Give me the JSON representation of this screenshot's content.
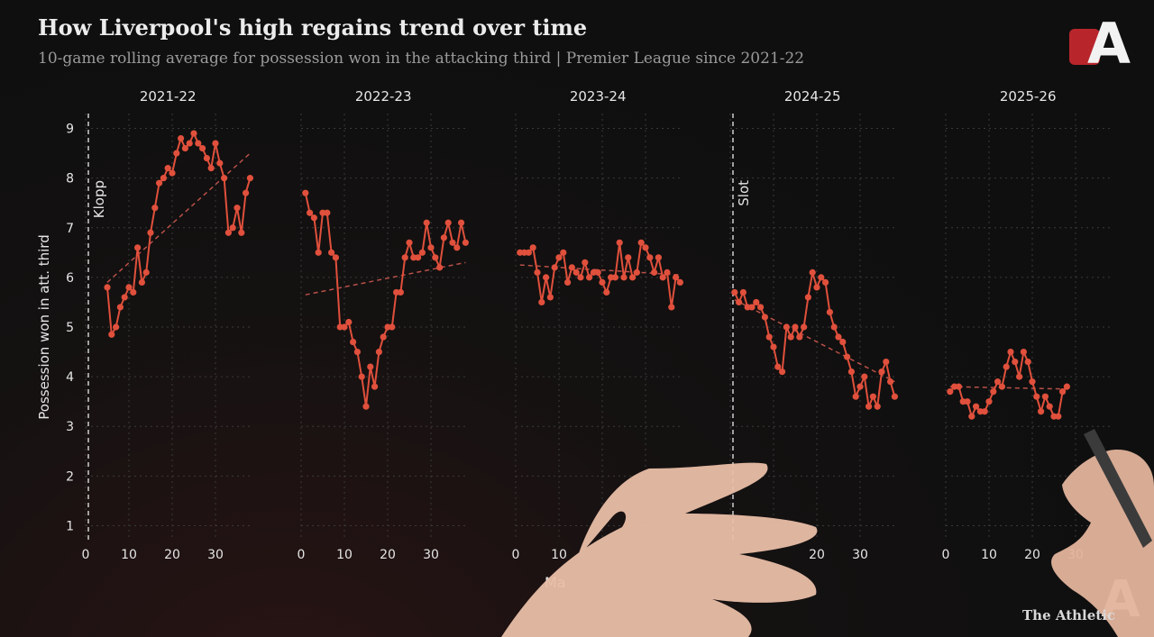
{
  "header": {
    "title": "How Liverpool's high regains trend over time",
    "subtitle": "10-game rolling average for possession won in the attacking third | Premier League since 2021-22"
  },
  "branding": {
    "footer": "The Athletic",
    "logo_letter": "A"
  },
  "colors": {
    "line": "#e0503c",
    "trend": "#b85048",
    "grid": "#3a3a3a",
    "text": "#e6e6e6"
  },
  "chart_data": {
    "type": "line",
    "title": "How Liverpool's high regains trend over time",
    "subtitle": "10-game rolling average for possession won in the attacking third | Premier League since 2021-22",
    "ylabel": "Possession won in att. third",
    "xlabel": "Ma",
    "ylim": [
      0.7,
      9.3
    ],
    "yticks": [
      1,
      2,
      3,
      4,
      5,
      6,
      7,
      8,
      9
    ],
    "grid": true,
    "panels": [
      {
        "name": "2021-22",
        "xlim": [
          0,
          38
        ],
        "xticks": [
          0,
          10,
          20,
          30
        ],
        "annotation": "Klopp",
        "x": [
          5,
          6,
          7,
          8,
          9,
          10,
          11,
          12,
          13,
          14,
          15,
          16,
          17,
          18,
          19,
          20,
          21,
          22,
          23,
          24,
          25,
          26,
          27,
          28,
          29,
          30,
          31,
          32,
          33,
          34,
          35,
          36,
          37,
          38
        ],
        "y": [
          5.8,
          4.85,
          5.0,
          5.4,
          5.6,
          5.8,
          5.7,
          6.6,
          5.9,
          6.1,
          6.9,
          7.4,
          7.9,
          8.0,
          8.2,
          8.1,
          8.5,
          8.8,
          8.6,
          8.7,
          8.9,
          8.7,
          8.6,
          8.4,
          8.2,
          8.7,
          8.3,
          8.0,
          6.9,
          7.0,
          7.4,
          6.9,
          7.7,
          8.0
        ],
        "trend": [
          [
            5,
            5.9
          ],
          [
            38,
            8.5
          ]
        ]
      },
      {
        "name": "2022-23",
        "xlim": [
          0,
          38
        ],
        "xticks": [
          0,
          10,
          20,
          30
        ],
        "x": [
          1,
          2,
          3,
          4,
          5,
          6,
          7,
          8,
          9,
          10,
          11,
          12,
          13,
          14,
          15,
          16,
          17,
          18,
          19,
          20,
          21,
          22,
          23,
          24,
          25,
          26,
          27,
          28,
          29,
          30,
          31,
          32,
          33,
          34,
          35,
          36,
          37,
          38
        ],
        "y": [
          7.7,
          7.3,
          7.2,
          6.5,
          7.3,
          7.3,
          6.5,
          6.4,
          5.0,
          5.0,
          5.1,
          4.7,
          4.5,
          4.0,
          3.4,
          4.2,
          3.8,
          4.5,
          4.8,
          5.0,
          5.0,
          5.7,
          5.7,
          6.4,
          6.7,
          6.4,
          6.4,
          6.5,
          7.1,
          6.6,
          6.4,
          6.2,
          6.8,
          7.1,
          6.7,
          6.6,
          7.1,
          6.7
        ],
        "trend": [
          [
            1,
            5.65
          ],
          [
            38,
            6.3
          ]
        ]
      },
      {
        "name": "2023-24",
        "xlim": [
          0,
          38
        ],
        "xticks": [
          0,
          10
        ],
        "x": [
          1,
          2,
          3,
          4,
          5,
          6,
          7,
          8,
          9,
          10,
          11,
          12,
          13,
          14,
          15,
          16,
          17,
          18,
          19,
          20,
          21,
          22,
          23,
          24,
          25,
          26,
          27,
          28,
          29,
          30,
          31,
          32,
          33,
          34,
          35,
          36,
          37,
          38
        ],
        "y": [
          6.5,
          6.5,
          6.5,
          6.6,
          6.1,
          5.5,
          6.0,
          5.6,
          6.2,
          6.4,
          6.5,
          5.9,
          6.2,
          6.1,
          6.0,
          6.3,
          6.0,
          6.1,
          6.1,
          5.9,
          5.7,
          6.0,
          6.0,
          6.7,
          6.0,
          6.4,
          6.0,
          6.1,
          6.7,
          6.6,
          6.4,
          6.1,
          6.4,
          6.0,
          6.1,
          5.4,
          6.0,
          5.9
        ],
        "trend": [
          [
            1,
            6.25
          ],
          [
            38,
            6.05
          ]
        ]
      },
      {
        "name": "2024-25",
        "xlim": [
          0,
          38
        ],
        "xticks": [
          20,
          30
        ],
        "annotation": "Slot",
        "x": [
          1,
          2,
          3,
          4,
          5,
          6,
          7,
          8,
          9,
          10,
          11,
          12,
          13,
          14,
          15,
          16,
          17,
          18,
          19,
          20,
          21,
          22,
          23,
          24,
          25,
          26,
          27,
          28,
          29,
          30,
          31,
          32,
          33,
          34,
          35,
          36,
          37,
          38
        ],
        "y": [
          5.7,
          5.5,
          5.7,
          5.4,
          5.4,
          5.5,
          5.4,
          5.2,
          4.8,
          4.6,
          4.2,
          4.1,
          5.0,
          4.8,
          5.0,
          4.8,
          5.0,
          5.6,
          6.1,
          5.8,
          6.0,
          5.9,
          5.3,
          5.0,
          4.8,
          4.7,
          4.4,
          4.1,
          3.6,
          3.8,
          4.0,
          3.4,
          3.6,
          3.4,
          4.1,
          4.3,
          3.9,
          3.6
        ],
        "trend": [
          [
            1,
            5.55
          ],
          [
            38,
            3.9
          ]
        ]
      },
      {
        "name": "2025-26",
        "xlim": [
          0,
          38
        ],
        "xticks": [
          0,
          10,
          20,
          30
        ],
        "x": [
          1,
          2,
          3,
          4,
          5,
          6,
          7,
          8,
          9,
          10,
          11,
          12,
          13,
          14,
          15,
          16,
          17,
          18,
          19,
          20,
          21,
          22,
          23,
          24,
          25,
          26,
          27,
          28
        ],
        "y": [
          3.7,
          3.8,
          3.8,
          3.5,
          3.5,
          3.2,
          3.4,
          3.3,
          3.3,
          3.5,
          3.7,
          3.9,
          3.8,
          4.2,
          4.5,
          4.3,
          4.0,
          4.5,
          4.3,
          3.9,
          3.6,
          3.3,
          3.6,
          3.4,
          3.2,
          3.2,
          3.7,
          3.8
        ],
        "trend": [
          [
            1,
            3.8
          ],
          [
            29,
            3.75
          ]
        ]
      }
    ]
  }
}
